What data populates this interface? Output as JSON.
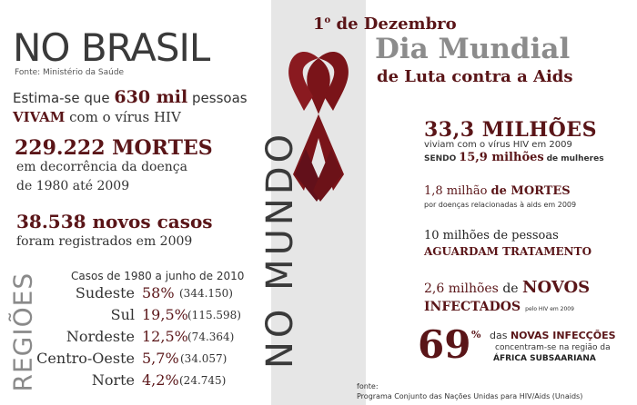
{
  "left": {
    "title": "NO BRASIL",
    "source": "Fonte: Ministério da Saúde",
    "estimate_pre": "Estima-se que",
    "estimate_num": "630 mil",
    "estimate_post": "pessoas",
    "vivam": "VIVAM",
    "vivam_post": "com o vírus HIV",
    "deaths_big": "229.222 MORTES",
    "deaths_line2": "em decorrência da doença",
    "deaths_line3": "de 1980 até 2009",
    "cases_big": "38.538 novos casos",
    "cases_line2": "foram registrados em 2009",
    "regions_label": "REGIÕES",
    "regions_header": "Casos de 1980 a junho de 2010",
    "regions": [
      {
        "name": "Sudeste",
        "pct": "58%",
        "count": "(344.150)"
      },
      {
        "name": "Sul",
        "pct": "19,5%",
        "count": "(115.598)"
      },
      {
        "name": "Nordeste",
        "pct": "12,5%",
        "count": "(74.364)"
      },
      {
        "name": "Centro-Oeste",
        "pct": "5,7%",
        "count": "(34.057)"
      },
      {
        "name": "Norte",
        "pct": "4,2%",
        "count": "(24.745)"
      }
    ]
  },
  "header": {
    "date_num": "1",
    "date_sup": "o",
    "date_rest": "de Dezembro",
    "title": "Dia Mundial",
    "subtitle": "de Luta contra a Aids"
  },
  "right": {
    "vertical_label": "NO MUNDO",
    "stat1_big": "33,3 MILHÕES",
    "stat1_line2": "viviam com o vírus HIV em 2009",
    "stat1_line3_pre": "SENDO",
    "stat1_line3_num": "15,9 milhões",
    "stat1_line3_post": "de mulheres",
    "stat2_num": "1,8 milhão",
    "stat2_word": "de MORTES",
    "stat2_line2": "por doenças relacionadas à aids em 2009",
    "stat3_line1": "10 milhões de pessoas",
    "stat3_line2": "AGUARDAM TRATAMENTO",
    "stat4_num": "2,6 milhões",
    "stat4_de": "de",
    "stat4_word": "NOVOS",
    "stat4_line2": "INFECTADOS",
    "stat4_small": "pelo HIV em 2009",
    "pct_big": "69",
    "pct_sign": "%",
    "pct_line1_pre": "das",
    "pct_line1_bold": "NOVAS INFECÇÕES",
    "pct_line2": "concentram-se na região da",
    "pct_line3": "ÁFRICA SUBSAARIANA",
    "fonte_label": "fonte:",
    "fonte_text": "Programa Conjunto das Nações Unidas para HIV/Aids (Unaids)"
  },
  "colors": {
    "maroon": "#5a1518",
    "ribbon": "#7a1419",
    "panel": "#e6e6e6",
    "title_gray": "#8c8c8c"
  }
}
